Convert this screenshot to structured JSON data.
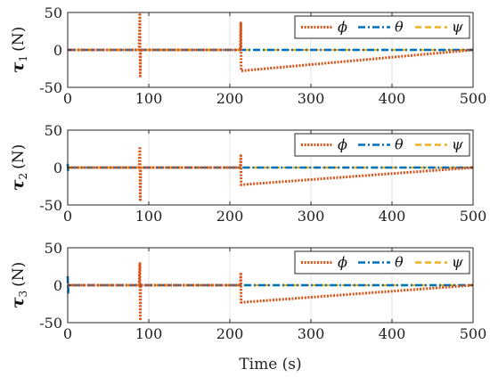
{
  "chart_data": {
    "type": "line",
    "xlabel": "Time (s)",
    "xlim": [
      0,
      500
    ],
    "xticks": [
      0,
      100,
      200,
      300,
      400,
      500
    ],
    "grid": true,
    "legend_placement": "top-right",
    "colors": {
      "phi": "#D95319",
      "theta": "#0072BD",
      "psi": "#EDB120"
    },
    "panels": [
      {
        "ylabel_symbol": "τ",
        "ylabel_subscript": "1",
        "ylabel_unit": "(N)",
        "ylim": [
          -50,
          50
        ],
        "yticks": [
          -50,
          0,
          50
        ],
        "series": [
          {
            "name": "ϕ",
            "key": "phi",
            "x": [
              0,
              88,
              89,
              89.5,
              90,
              213,
              213.5,
              214,
              500
            ],
            "y": [
              0,
              0,
              47,
              -35,
              0,
              0,
              36,
              -28,
              0
            ]
          },
          {
            "name": "θ",
            "key": "theta",
            "x": [
              0,
              500
            ],
            "y": [
              0,
              0
            ]
          },
          {
            "name": "ψ",
            "key": "psi",
            "x": [
              0,
              500
            ],
            "y": [
              0,
              0
            ]
          }
        ]
      },
      {
        "ylabel_symbol": "τ",
        "ylabel_subscript": "2",
        "ylabel_unit": "(N)",
        "ylim": [
          -50,
          50
        ],
        "yticks": [
          -50,
          0,
          50
        ],
        "series": [
          {
            "name": "ϕ",
            "key": "phi",
            "x": [
              0,
              88,
              89,
              89.5,
              90,
              213,
              213.5,
              214,
              500
            ],
            "y": [
              0,
              0,
              28,
              -43,
              0,
              0,
              16,
              -23,
              0
            ]
          },
          {
            "name": "θ",
            "key": "theta",
            "x": [
              0,
              0.5,
              1,
              500
            ],
            "y": [
              5,
              -5,
              0,
              0
            ]
          },
          {
            "name": "ψ",
            "key": "psi",
            "x": [
              0,
              500
            ],
            "y": [
              0,
              0
            ]
          }
        ]
      },
      {
        "ylabel_symbol": "τ",
        "ylabel_subscript": "3",
        "ylabel_unit": "(N)",
        "ylim": [
          -50,
          50
        ],
        "yticks": [
          -50,
          0,
          50
        ],
        "series": [
          {
            "name": "ϕ",
            "key": "phi",
            "x": [
              0,
              88,
              89,
              89.5,
              90,
              213,
              213.5,
              214,
              500
            ],
            "y": [
              0,
              0,
              29,
              -45,
              0,
              0,
              17,
              -23,
              0
            ]
          },
          {
            "name": "θ",
            "key": "theta",
            "x": [
              0,
              0.5,
              1,
              500
            ],
            "y": [
              12,
              -10,
              0,
              0
            ]
          },
          {
            "name": "ψ",
            "key": "psi",
            "x": [
              0,
              500
            ],
            "y": [
              0,
              0
            ]
          }
        ]
      }
    ]
  }
}
